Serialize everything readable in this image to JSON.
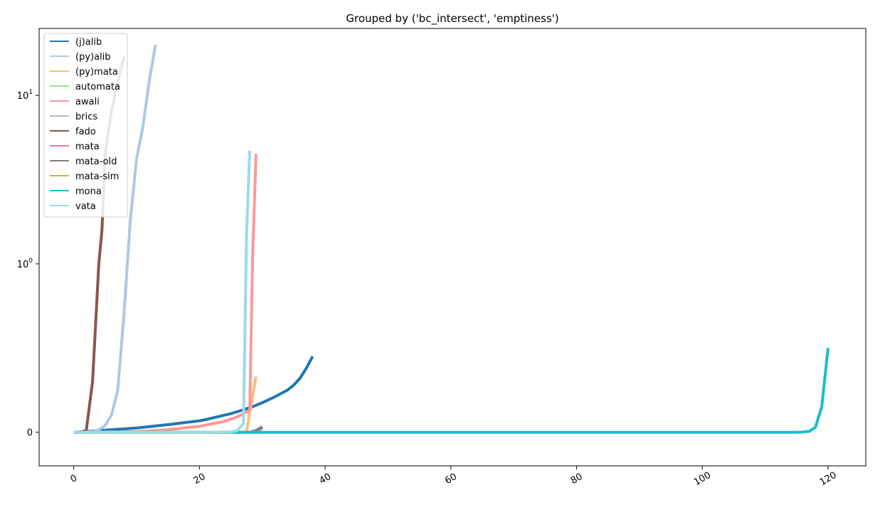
{
  "chart_data": {
    "type": "line",
    "title": "Grouped by ('bc_intersect', 'emptiness')",
    "xlabel": "",
    "ylabel": "",
    "xlim": [
      -5.5,
      126
    ],
    "yscale": "symlog",
    "ylim": [
      -0.2,
      25
    ],
    "grid": false,
    "legend_position": "top-left",
    "x_ticks": [
      0,
      20,
      40,
      60,
      80,
      100,
      120
    ],
    "x_tick_labels": [
      "0",
      "20",
      "40",
      "60",
      "80",
      "100",
      "120"
    ],
    "y_ticks": [
      0,
      1,
      10
    ],
    "y_tick_labels": [
      {
        "base": "0",
        "exp": ""
      },
      {
        "base": "10",
        "exp": "0"
      },
      {
        "base": "10",
        "exp": "1"
      }
    ],
    "series": [
      {
        "name": "(j)alib",
        "color": "#1f77b4",
        "x": [
          0,
          5,
          10,
          15,
          20,
          21,
          25,
          28,
          30,
          32,
          34,
          35,
          36,
          37,
          38
        ],
        "y": [
          0,
          0.012,
          0.025,
          0.045,
          0.068,
          0.075,
          0.11,
          0.145,
          0.175,
          0.21,
          0.25,
          0.28,
          0.32,
          0.38,
          0.45
        ]
      },
      {
        "name": "(py)alib",
        "color": "#aec7e8",
        "x": [
          0,
          3,
          4,
          5,
          6,
          7,
          8,
          9,
          10,
          11,
          12,
          13
        ],
        "y": [
          0,
          0.005,
          0.015,
          0.04,
          0.1,
          0.25,
          0.7,
          1.8,
          4.2,
          6.5,
          12,
          20
        ]
      },
      {
        "name": "(py)mata",
        "color": "#ffbb78",
        "x": [
          0,
          25,
          27.5,
          28,
          28.5,
          29
        ],
        "y": [
          0,
          0,
          0,
          0.12,
          0.22,
          0.33
        ]
      },
      {
        "name": "automata",
        "color": "#98df8a",
        "x": [
          0,
          28
        ],
        "y": [
          0,
          0
        ]
      },
      {
        "name": "awali",
        "color": "#ff9896",
        "x": [
          0,
          10,
          15,
          20,
          24,
          26,
          27,
          28,
          28.5,
          29
        ],
        "y": [
          0,
          0.003,
          0.015,
          0.035,
          0.065,
          0.09,
          0.11,
          0.13,
          1.2,
          4.5
        ]
      },
      {
        "name": "brics",
        "color": "#c5b0d5",
        "x": [
          0,
          28,
          29,
          30
        ],
        "y": [
          0,
          0,
          0.01,
          0.035
        ]
      },
      {
        "name": "fado",
        "color": "#8c564b",
        "x": [
          0,
          1,
          2,
          3,
          4,
          4.5,
          5,
          6,
          7,
          8
        ],
        "y": [
          0,
          0,
          0.01,
          0.3,
          1.0,
          1.6,
          4.5,
          8,
          12,
          17
        ]
      },
      {
        "name": "mata",
        "color": "#e377c2",
        "x": [
          0,
          28,
          29,
          30
        ],
        "y": [
          0,
          0,
          0.005,
          0.025
        ]
      },
      {
        "name": "mata-old",
        "color": "#7f7f7f",
        "x": [
          0,
          28,
          29,
          30
        ],
        "y": [
          0,
          0,
          0.01,
          0.03
        ]
      },
      {
        "name": "mata-sim",
        "color": "#bcbd22",
        "x": [
          0,
          30
        ],
        "y": [
          0,
          0
        ]
      },
      {
        "name": "mona",
        "color": "#17becf",
        "x": [
          0,
          20,
          40,
          60,
          80,
          100,
          115,
          116,
          117,
          118,
          119,
          120
        ],
        "y": [
          0,
          0,
          0,
          0,
          0,
          0,
          0,
          0.001,
          0.005,
          0.03,
          0.15,
          0.5
        ]
      },
      {
        "name": "vata",
        "color": "#9edae5",
        "x": [
          0,
          10,
          20,
          25,
          26,
          27,
          27.5,
          28
        ],
        "y": [
          0,
          0,
          0,
          0.002,
          0.01,
          0.05,
          1.5,
          4.7
        ]
      }
    ]
  }
}
